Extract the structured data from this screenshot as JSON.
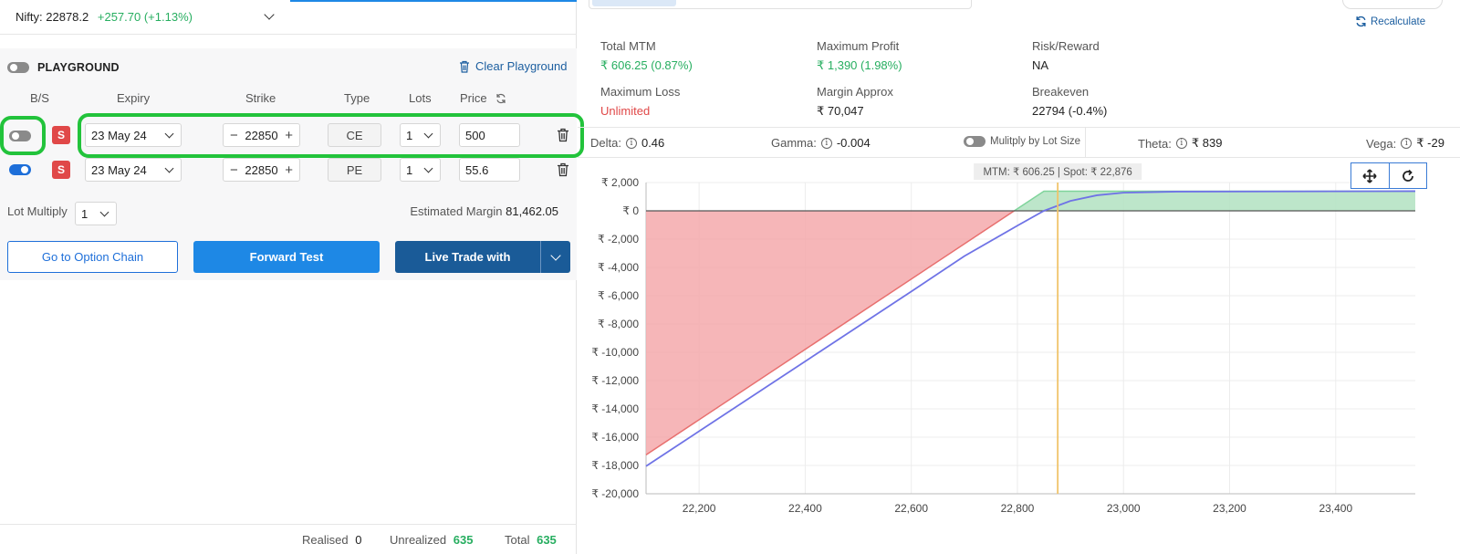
{
  "header": {
    "index_label": "Nifty:",
    "index_value": "22878.2",
    "index_change": "+257.70 (+1.13%)"
  },
  "playground": {
    "title": "PLAYGROUND",
    "clear_label": "Clear Playground",
    "columns": [
      "B/S",
      "Expiry",
      "Strike",
      "Type",
      "Lots",
      "Price"
    ],
    "legs": [
      {
        "enabled": false,
        "side": "S",
        "expiry": "23 May 24",
        "strike": "22850",
        "type": "CE",
        "lots": "1",
        "price": "500"
      },
      {
        "enabled": true,
        "side": "S",
        "expiry": "23 May 24",
        "strike": "22850",
        "type": "PE",
        "lots": "1",
        "price": "55.6"
      }
    ],
    "lot_multiply_label": "Lot Multiply",
    "lot_multiply_value": "1",
    "estimated_margin_label": "Estimated Margin",
    "estimated_margin_value": "81,462.05",
    "buttons": {
      "option_chain": "Go to Option Chain",
      "forward_test": "Forward Test",
      "live_trade": "Live Trade with"
    }
  },
  "footer": {
    "realised_label": "Realised",
    "realised_value": "0",
    "unrealized_label": "Unrealized",
    "unrealized_value": "635",
    "total_label": "Total",
    "total_value": "635"
  },
  "summary": {
    "recalculate": "Recalculate",
    "total_mtm_label": "Total MTM",
    "total_mtm_value": "₹ 606.25 (0.87%)",
    "max_profit_label": "Maximum Profit",
    "max_profit_value": "₹ 1,390 (1.98%)",
    "risk_reward_label": "Risk/Reward",
    "risk_reward_value": "NA",
    "max_loss_label": "Maximum Loss",
    "max_loss_value": "Unlimited",
    "margin_label": "Margin Approx",
    "margin_value": "₹ 70,047",
    "breakeven_label": "Breakeven",
    "breakeven_value": "22794 (-0.4%)"
  },
  "greeks": {
    "delta_label": "Delta:",
    "delta_value": "0.46",
    "gamma_label": "Gamma:",
    "gamma_value": "-0.004",
    "multiply_label": "Mulitply by Lot Size",
    "theta_label": "Theta:",
    "theta_value": "₹ 839",
    "vega_label": "Vega:",
    "vega_value": "₹ -29"
  },
  "colors": {
    "profit": "#27ae60",
    "loss": "#e04848",
    "accent": "#1e88e5",
    "highlight": "#22c33b"
  },
  "chart_data": {
    "type": "area",
    "tooltip": "MTM: ₹ 606.25  |  Spot: ₹ 22,876",
    "x_ticks": [
      22200,
      22400,
      22600,
      22800,
      23000,
      23200,
      23400
    ],
    "x_tick_labels": [
      "22,200",
      "22,400",
      "22,600",
      "22,800",
      "23,000",
      "23,200",
      "23,400"
    ],
    "y_ticks": [
      2000,
      0,
      -2000,
      -4000,
      -6000,
      -8000,
      -10000,
      -12000,
      -14000,
      -16000,
      -18000,
      -20000
    ],
    "y_tick_labels": [
      "₹ 2,000",
      "₹ 0",
      "₹ -2,000",
      "₹ -4,000",
      "₹ -6,000",
      "₹ -8,000",
      "₹ -10,000",
      "₹ -12,000",
      "₹ -14,000",
      "₹ -16,000",
      "₹ -18,000",
      "₹ -20,000"
    ],
    "xlim": [
      22100,
      23550
    ],
    "ylim": [
      -20000,
      2000
    ],
    "spot": 22876,
    "series": [
      {
        "points": [
          [
            22100,
            -17250
          ],
          [
            22794,
            0
          ],
          [
            22850,
            1390
          ],
          [
            23550,
            1390
          ]
        ]
      },
      {
        "points": [
          [
            22100,
            -18050
          ],
          [
            22600,
            -5700
          ],
          [
            22700,
            -3200
          ],
          [
            22800,
            -1050
          ],
          [
            22850,
            0
          ],
          [
            22900,
            700
          ],
          [
            22950,
            1100
          ],
          [
            23000,
            1280
          ],
          [
            23100,
            1360
          ],
          [
            23550,
            1390
          ]
        ]
      }
    ]
  }
}
